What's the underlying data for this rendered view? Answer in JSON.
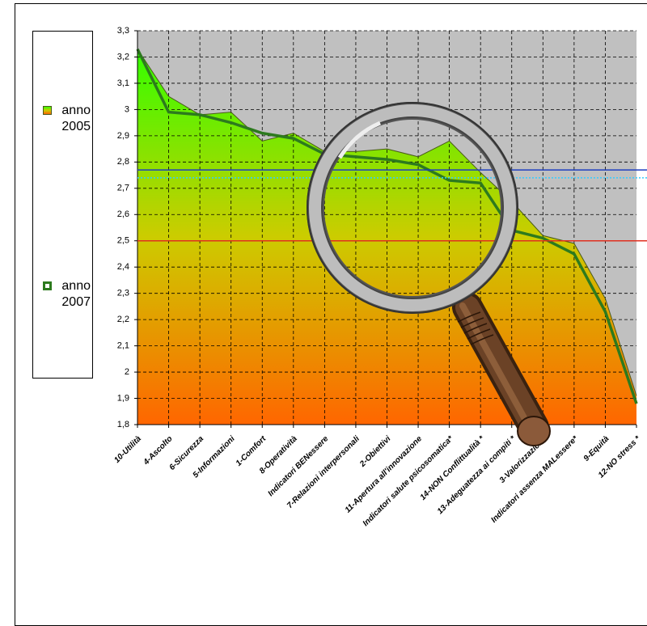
{
  "chart_data": {
    "type": "area-line",
    "categories": [
      "10-Utilità",
      "4-Ascolto",
      "6-Sicurezza",
      "5-Informazioni",
      "1-Comfort",
      "8-Operatività",
      "Indicatori BENessere",
      "7-Relazioni interpersonali",
      "2-Obiettivi",
      "11-Apertura all'innovazione",
      "Indicatori salute psicosomatica*",
      "14-NON Conflittualità *",
      "13-Adeguatezza ai compiti *",
      "3-Valorizzazione",
      "Indicatori assenza MALessere*",
      "9-Equità",
      "12-NO stress *"
    ],
    "series": [
      {
        "name": "anno 2005",
        "kind": "area",
        "color": "#4a5a1a",
        "gradient": [
          "#33ff00",
          "#cccc00",
          "#ff6600"
        ],
        "values": [
          3.23,
          3.05,
          2.98,
          2.99,
          2.88,
          2.91,
          2.84,
          2.84,
          2.85,
          2.82,
          2.88,
          2.76,
          2.65,
          2.52,
          2.49,
          2.28,
          1.91
        ]
      },
      {
        "name": "anno 2007",
        "kind": "line",
        "color": "#2d7a1e",
        "values": [
          3.23,
          2.99,
          2.98,
          2.95,
          2.91,
          2.89,
          2.83,
          2.82,
          2.81,
          2.79,
          2.73,
          2.72,
          2.54,
          2.51,
          2.45,
          2.23,
          1.88
        ]
      }
    ],
    "reference_lines": [
      {
        "value": 2.77,
        "color": "#1f3fbf",
        "dash": "none"
      },
      {
        "value": 2.74,
        "color": "#33ccff",
        "dash": "2 2"
      },
      {
        "value": 2.5,
        "color": "#e03020",
        "dash": "none"
      }
    ],
    "ylim": [
      1.8,
      3.3
    ],
    "yticks": [
      {
        "value": 1.8,
        "label": "1,8"
      },
      {
        "value": 1.9,
        "label": "1,9"
      },
      2,
      {
        "value": 2.1,
        "label": "2,1"
      },
      {
        "value": 2.2,
        "label": "2,2"
      },
      {
        "value": 2.3,
        "label": "2,3"
      },
      {
        "value": 2.4,
        "label": "2,4"
      },
      {
        "value": 2.5,
        "label": "2,5"
      },
      {
        "value": 2.6,
        "label": "2,6"
      },
      {
        "value": 2.7,
        "label": "2,7"
      },
      {
        "value": 2.8,
        "label": "2,8"
      },
      {
        "value": 2.9,
        "label": "2,9"
      },
      3,
      {
        "value": 3.1,
        "label": "3,1"
      },
      {
        "value": 3.2,
        "label": "3,2"
      },
      {
        "value": 3.3,
        "label": "3,3"
      }
    ],
    "grid": true,
    "plot_background": "#c0c0c0"
  }
}
